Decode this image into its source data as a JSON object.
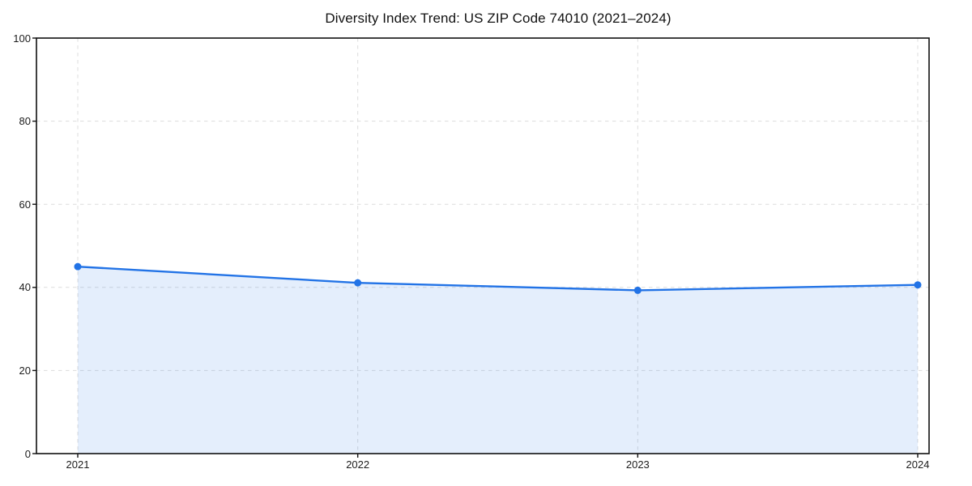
{
  "chart_data": {
    "type": "area",
    "title": "Diversity Index Trend: US ZIP Code 74010 (2021–2024)",
    "xlabel": "",
    "ylabel": "",
    "x": [
      2021,
      2022,
      2023,
      2024
    ],
    "x_tick_labels": [
      "2021",
      "2022",
      "2023",
      "2024"
    ],
    "y_ticks": [
      0,
      20,
      40,
      60,
      80,
      100
    ],
    "y_tick_labels": [
      "0",
      "20",
      "40",
      "60",
      "80",
      "100"
    ],
    "ylim": [
      0,
      100
    ],
    "series": [
      {
        "name": "Diversity Index",
        "values": [
          45.0,
          41.1,
          39.3,
          40.6
        ]
      }
    ],
    "grid": "dashed-both-axes",
    "legend_position": "none",
    "colors": {
      "line": "#2273e6",
      "marker": "#2273e6",
      "area_fill": "rgba(34,115,230,0.12)",
      "gridline": "#d9d9d9",
      "spine": "#111111",
      "text": "#1c1c1c",
      "background": "#ffffff"
    },
    "style": {
      "marker_shape": "circle",
      "area_fill_enabled": true
    }
  }
}
